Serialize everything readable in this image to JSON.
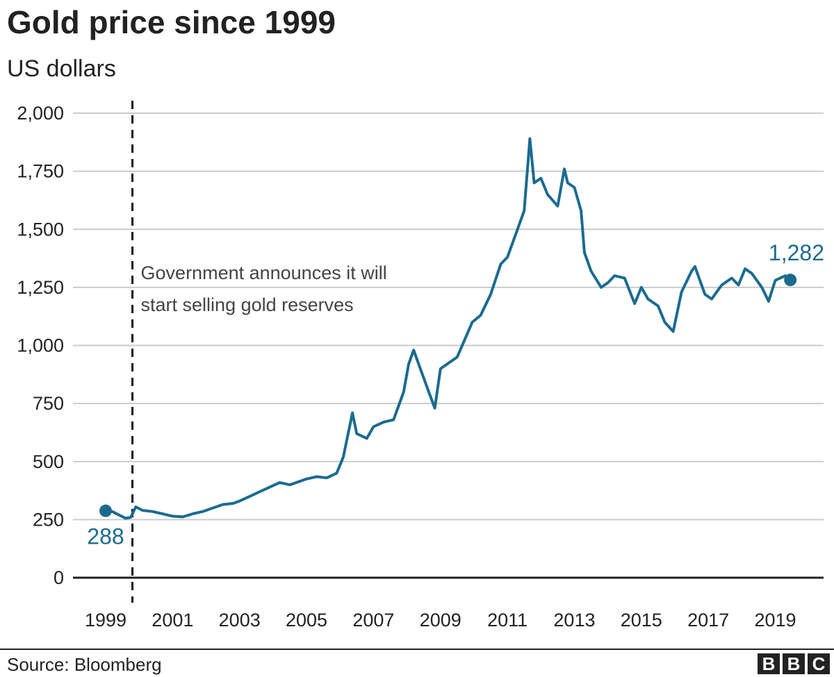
{
  "chart_data": {
    "type": "line",
    "title": "Gold price since 1999",
    "subtitle": "US dollars",
    "source": "Source: Bloomberg",
    "logo": "BBC",
    "ylim": [
      0,
      2000
    ],
    "y_ticks": [
      0,
      250,
      500,
      750,
      1000,
      1250,
      1500,
      1750,
      2000
    ],
    "y_tick_labels": [
      "0",
      "250",
      "500",
      "750",
      "1,000",
      "1,250",
      "1,500",
      "1,750",
      "2,000"
    ],
    "xlim": [
      1999.0,
      2019.55
    ],
    "x_ticks": [
      1999,
      2001,
      2003,
      2005,
      2007,
      2009,
      2011,
      2013,
      2015,
      2017,
      2019
    ],
    "x_tick_labels": [
      "1999",
      "2001",
      "2003",
      "2005",
      "2007",
      "2009",
      "2011",
      "2013",
      "2015",
      "2017",
      "2019"
    ],
    "grid": "horizontal",
    "line_color": "#1b6b8f",
    "series": [
      {
        "x": [
          1999.0,
          1999.2,
          1999.4,
          1999.6,
          1999.75,
          1999.9,
          2000.1,
          2000.4,
          2000.7,
          2001.0,
          2001.3,
          2001.6,
          2001.9,
          2002.2,
          2002.5,
          2002.8,
          2003.0,
          2003.3,
          2003.6,
          2003.9,
          2004.2,
          2004.5,
          2004.8,
          2005.0,
          2005.3,
          2005.6,
          2005.9,
          2006.1,
          2006.37,
          2006.5,
          2006.8,
          2007.0,
          2007.3,
          2007.6,
          2007.9,
          2008.05,
          2008.2,
          2008.4,
          2008.6,
          2008.83,
          2009.0,
          2009.2,
          2009.5,
          2009.8,
          2009.95,
          2010.2,
          2010.5,
          2010.8,
          2011.0,
          2011.3,
          2011.5,
          2011.67,
          2011.8,
          2012.0,
          2012.2,
          2012.5,
          2012.7,
          2012.8,
          2013.0,
          2013.2,
          2013.3,
          2013.5,
          2013.8,
          2014.0,
          2014.2,
          2014.5,
          2014.8,
          2015.0,
          2015.2,
          2015.5,
          2015.7,
          2015.95,
          2016.2,
          2016.5,
          2016.6,
          2016.9,
          2017.1,
          2017.4,
          2017.7,
          2017.9,
          2018.1,
          2018.3,
          2018.6,
          2018.8,
          2019.0,
          2019.3,
          2019.45
        ],
        "y": [
          288,
          285,
          270,
          256,
          260,
          305,
          290,
          285,
          275,
          265,
          262,
          275,
          285,
          300,
          315,
          320,
          330,
          350,
          370,
          390,
          410,
          400,
          415,
          425,
          435,
          430,
          450,
          520,
          710,
          620,
          600,
          650,
          670,
          680,
          800,
          920,
          980,
          900,
          820,
          730,
          900,
          920,
          950,
          1050,
          1100,
          1130,
          1220,
          1350,
          1380,
          1500,
          1580,
          1890,
          1700,
          1720,
          1650,
          1600,
          1760,
          1700,
          1680,
          1580,
          1400,
          1320,
          1250,
          1270,
          1300,
          1290,
          1180,
          1250,
          1200,
          1170,
          1100,
          1060,
          1230,
          1320,
          1340,
          1220,
          1200,
          1260,
          1290,
          1260,
          1330,
          1310,
          1250,
          1190,
          1280,
          1300,
          1282
        ]
      }
    ],
    "start_label": "288",
    "end_label": "1,282",
    "annotation": {
      "x": 1999.8,
      "lines": [
        "Government announces it will",
        "start selling gold reserves"
      ]
    }
  }
}
